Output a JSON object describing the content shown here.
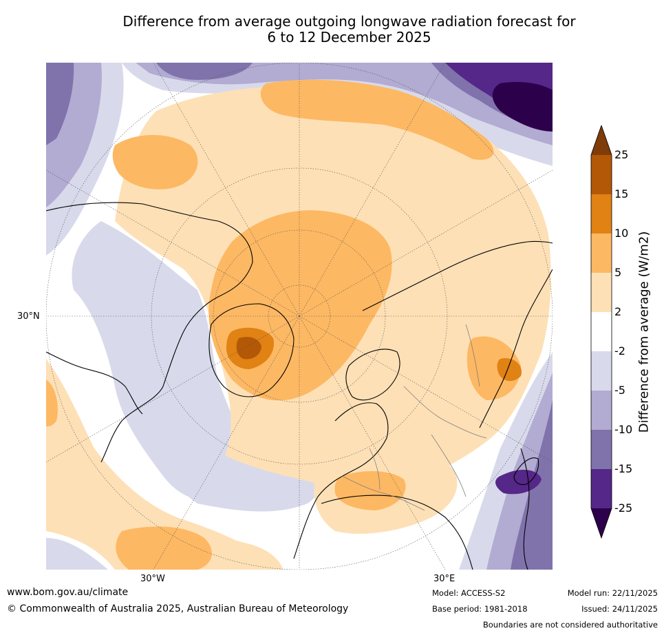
{
  "title": {
    "line1": "Difference from average outgoing longwave radiation forecast for",
    "line2": "6 to 12 December 2025"
  },
  "map": {
    "projection": "Northern hemisphere polar stereographic",
    "graticule_labels": {
      "lat_30n": "30°N",
      "lon_30w": "30°W",
      "lon_30e": "30°E"
    }
  },
  "colorbar": {
    "label": "Difference from average (W/m2)",
    "ticks": [
      "25",
      "15",
      "10",
      "5",
      "2",
      "-2",
      "-5",
      "-10",
      "-15",
      "-25"
    ],
    "colors": {
      "above_25": "#7f3b08",
      "15_25": "#b35806",
      "10_15": "#e08214",
      "5_10": "#fdb863",
      "2_5": "#fee0b6",
      "-2_2": "#ffffff",
      "-5_-2": "#d8daeb",
      "-10_-5": "#b2abd2",
      "-15_-10": "#8073ac",
      "-25_-15": "#542788",
      "below_-25": "#2d004b"
    }
  },
  "footer": {
    "url": "www.bom.gov.au/climate",
    "copyright": "© Commonwealth of Australia 2025, Australian Bureau of Meteorology",
    "model": "Model: ACCESS-S2",
    "base_period": "Base period: 1981-2018",
    "model_run": "Model run: 22/11/2025",
    "issued": "Issued: 24/11/2025",
    "disclaimer": "Boundaries are not considered authoritative"
  }
}
